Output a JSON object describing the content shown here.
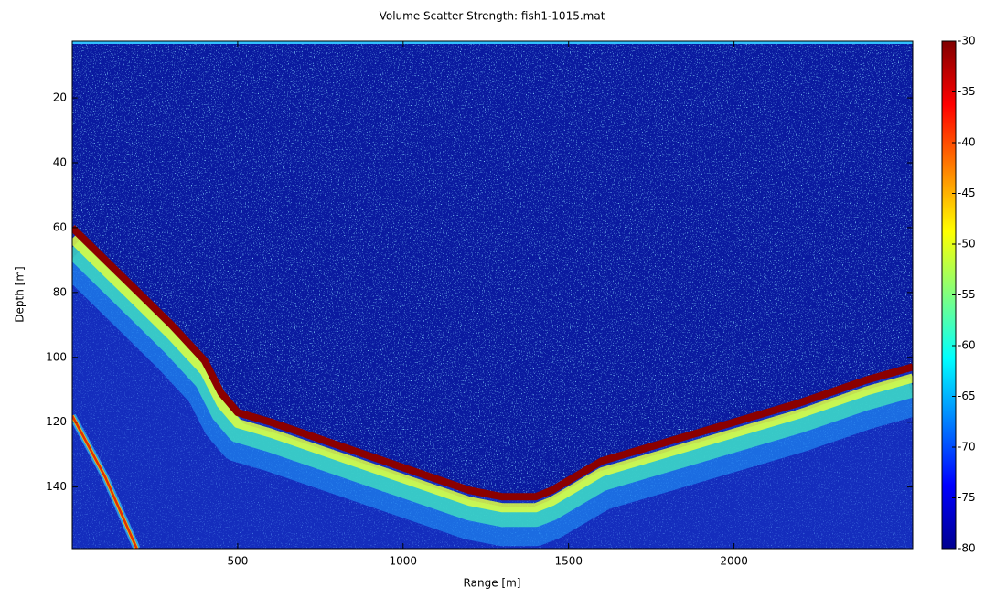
{
  "chart_data": {
    "type": "heatmap",
    "title": "Volume Scatter Strength: fish1-1015.mat",
    "xlabel": "Range [m]",
    "ylabel": "Depth [m]",
    "xlim": [
      0,
      2540
    ],
    "xticks": [
      500,
      1000,
      1500,
      2000
    ],
    "ylim": [
      2.5,
      159
    ],
    "yticks": [
      20,
      40,
      60,
      80,
      100,
      120,
      140
    ],
    "clim": [
      -80,
      -30
    ],
    "cticks": [
      -80,
      -75,
      -70,
      -65,
      -60,
      -55,
      -50,
      -45,
      -40,
      -35,
      -30
    ],
    "colormap": "jet",
    "lines": [
      {
        "x": [
          0,
          100,
          200,
          300,
          400,
          450,
          500,
          600,
          800,
          1000,
          1200,
          1300,
          1400,
          1450,
          1500,
          1600,
          1800,
          2000,
          2200,
          2400,
          2540
        ],
        "values": [
          60,
          70,
          80,
          90,
          101,
          111,
          117,
          120,
          127,
          134,
          141,
          143,
          143,
          141,
          138,
          132,
          126,
          120,
          114,
          107,
          103
        ]
      },
      {
        "x": [
          0,
          100,
          195
        ],
        "values": [
          118,
          137,
          159
        ]
      }
    ]
  }
}
